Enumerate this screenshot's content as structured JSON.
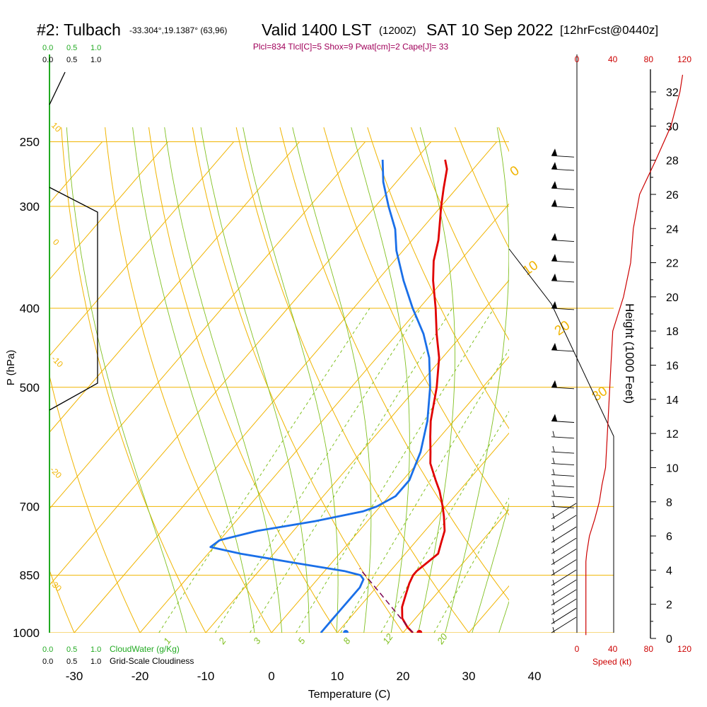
{
  "header": {
    "station": "#2: Tulbach",
    "coords": "-33.304°,19.1387° (63,96)",
    "valid_main": "Valid 1400 LST",
    "valid_z": "(1200Z)",
    "date": "SAT 10 Sep 2022",
    "forecast": "[12hrFcst@0440z]"
  },
  "indices_line": "Plcl=834 Tlcl[C]=5 Shox=9 Pwat[cm]=2 Cape[J]= 33",
  "colors": {
    "temperature": "#e00000",
    "dewpoint": "#1a6fe8",
    "isotherm_isobar": "#f0b400",
    "mixing_ratio": "#80c020",
    "cloud_water": "#22aa22",
    "speed_profile": "#cc0000",
    "indices": "#a0005a"
  },
  "labels": {
    "cloudwater_scale": [
      "0.0",
      "0.5",
      "1.0"
    ],
    "cloudiness_scale": [
      "0.0",
      "0.5",
      "1.0"
    ],
    "cloudwater_title": "CloudWater (g/Kg)",
    "cloudiness_title": "Grid-Scale Cloudiness",
    "speed_ticks": [
      "0",
      "40",
      "80",
      "120"
    ],
    "speed_title": "Speed (kt)",
    "height_title": "Height (1000 Feet)",
    "height_ticks": [
      "0",
      "2",
      "4",
      "6",
      "8",
      "10",
      "12",
      "14",
      "16",
      "18",
      "20",
      "22",
      "24",
      "26",
      "28",
      "30",
      "32"
    ],
    "pressure_title": "P (hPa)",
    "pressure_ticks": [
      "250",
      "300",
      "400",
      "500",
      "700",
      "850",
      "1000"
    ],
    "temp_title": "Temperature (C)",
    "temp_ticks": [
      "-30",
      "-20",
      "-10",
      "0",
      "10",
      "20",
      "30",
      "40"
    ],
    "mixing_labels": [
      "1",
      "2",
      "3",
      "5",
      "8",
      "12",
      "20"
    ],
    "dry_adiabat_labels": [
      "10",
      "0",
      "-10",
      "-20",
      "-30"
    ],
    "moist_adiabat_labels": [
      "0",
      "10",
      "20",
      "30"
    ]
  },
  "chart_data": {
    "type": "skew-t",
    "xlim": [
      -30,
      40
    ],
    "ylim": [
      1000,
      250
    ],
    "temperature_profile": [
      {
        "p": 1000,
        "t": 21.5
      },
      {
        "p": 985,
        "t": 20.0
      },
      {
        "p": 960,
        "t": 18.0
      },
      {
        "p": 930,
        "t": 16.5
      },
      {
        "p": 900,
        "t": 15.5
      },
      {
        "p": 870,
        "t": 14.5
      },
      {
        "p": 850,
        "t": 14.0
      },
      {
        "p": 840,
        "t": 14.0
      },
      {
        "p": 820,
        "t": 14.5
      },
      {
        "p": 800,
        "t": 15.0
      },
      {
        "p": 775,
        "t": 14.0
      },
      {
        "p": 750,
        "t": 13.0
      },
      {
        "p": 720,
        "t": 11.0
      },
      {
        "p": 700,
        "t": 9.5
      },
      {
        "p": 670,
        "t": 7.0
      },
      {
        "p": 650,
        "t": 5.0
      },
      {
        "p": 620,
        "t": 2.0
      },
      {
        "p": 600,
        "t": 0.5
      },
      {
        "p": 575,
        "t": -1.5
      },
      {
        "p": 550,
        "t": -3.5
      },
      {
        "p": 500,
        "t": -7.0
      },
      {
        "p": 460,
        "t": -10.5
      },
      {
        "p": 430,
        "t": -14.0
      },
      {
        "p": 400,
        "t": -17.5
      },
      {
        "p": 370,
        "t": -21.5
      },
      {
        "p": 350,
        "t": -24.0
      },
      {
        "p": 330,
        "t": -26.0
      },
      {
        "p": 300,
        "t": -30.0
      },
      {
        "p": 285,
        "t": -32.0
      },
      {
        "p": 270,
        "t": -34.0
      },
      {
        "p": 263,
        "t": -35.5
      }
    ],
    "dewpoint_profile": [
      {
        "p": 1000,
        "t": 7.5
      },
      {
        "p": 990,
        "t": 7.5
      },
      {
        "p": 970,
        "t": 7.5
      },
      {
        "p": 940,
        "t": 7.5
      },
      {
        "p": 910,
        "t": 7.5
      },
      {
        "p": 880,
        "t": 7.5
      },
      {
        "p": 860,
        "t": 7.0
      },
      {
        "p": 850,
        "t": 6.0
      },
      {
        "p": 840,
        "t": 3.0
      },
      {
        "p": 820,
        "t": -6.0
      },
      {
        "p": 800,
        "t": -15.0
      },
      {
        "p": 785,
        "t": -20.5
      },
      {
        "p": 770,
        "t": -20.0
      },
      {
        "p": 750,
        "t": -15.5
      },
      {
        "p": 730,
        "t": -8.0
      },
      {
        "p": 710,
        "t": -2.0
      },
      {
        "p": 700,
        "t": -0.5
      },
      {
        "p": 680,
        "t": 1.0
      },
      {
        "p": 650,
        "t": 1.0
      },
      {
        "p": 600,
        "t": -1.0
      },
      {
        "p": 550,
        "t": -4.0
      },
      {
        "p": 500,
        "t": -8.0
      },
      {
        "p": 460,
        "t": -12.0
      },
      {
        "p": 430,
        "t": -16.0
      },
      {
        "p": 400,
        "t": -21.0
      },
      {
        "p": 370,
        "t": -26.0
      },
      {
        "p": 340,
        "t": -31.0
      },
      {
        "p": 320,
        "t": -34.0
      },
      {
        "p": 300,
        "t": -38.0
      },
      {
        "p": 280,
        "t": -42.0
      },
      {
        "p": 263,
        "t": -45.0
      }
    ],
    "parcel_path": [
      {
        "p": 1000,
        "t": 21.5
      },
      {
        "p": 834,
        "t": 5.0
      }
    ],
    "surface_temperature": 22.5,
    "surface_dewpoint": 11.3,
    "isobars_hpa": [
      250,
      300,
      400,
      500,
      700,
      850,
      1000
    ],
    "wind_speed_kt": [
      {
        "h_kft": 0.2,
        "s": 10
      },
      {
        "h_kft": 1,
        "s": 10
      },
      {
        "h_kft": 3,
        "s": 10
      },
      {
        "h_kft": 4.5,
        "s": 10
      },
      {
        "h_kft": 5,
        "s": 11
      },
      {
        "h_kft": 6,
        "s": 14
      },
      {
        "h_kft": 7,
        "s": 20
      },
      {
        "h_kft": 8,
        "s": 25
      },
      {
        "h_kft": 9,
        "s": 28
      },
      {
        "h_kft": 10,
        "s": 32
      },
      {
        "h_kft": 12,
        "s": 34
      },
      {
        "h_kft": 14,
        "s": 36
      },
      {
        "h_kft": 16,
        "s": 38
      },
      {
        "h_kft": 18,
        "s": 40
      },
      {
        "h_kft": 20,
        "s": 52
      },
      {
        "h_kft": 22,
        "s": 60
      },
      {
        "h_kft": 24,
        "s": 63
      },
      {
        "h_kft": 26,
        "s": 70
      },
      {
        "h_kft": 28,
        "s": 88
      },
      {
        "h_kft": 30,
        "s": 105
      },
      {
        "h_kft": 32,
        "s": 115
      },
      {
        "h_kft": 33,
        "s": 118
      }
    ],
    "barb_pressures": [
      1000,
      975,
      950,
      925,
      900,
      875,
      850,
      825,
      800,
      775,
      750,
      725,
      700,
      680,
      660,
      640,
      620,
      600,
      575,
      550,
      500,
      450,
      400,
      370,
      350,
      330,
      300,
      285,
      270,
      260
    ]
  }
}
